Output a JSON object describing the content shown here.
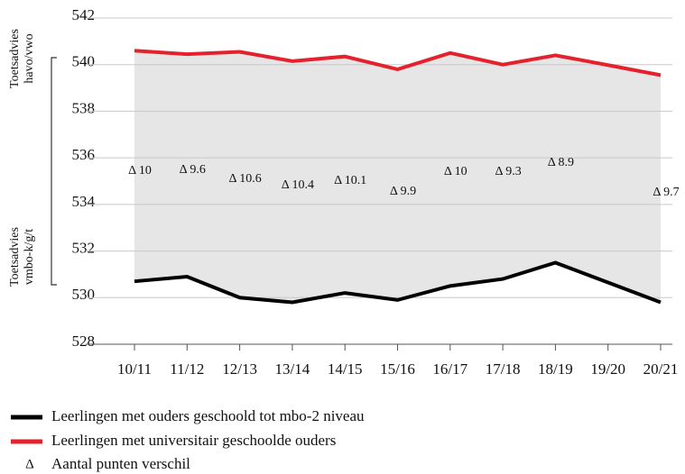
{
  "chart_data": {
    "type": "line",
    "categories": [
      "10/11",
      "11/12",
      "12/13",
      "13/14",
      "14/15",
      "15/16",
      "16/17",
      "17/18",
      "18/19",
      "19/20",
      "20/21"
    ],
    "series": [
      {
        "name": "Leerlingen met ouders geschoold tot mbo-2 niveau",
        "color": "#000000",
        "values": [
          530.7,
          530.9,
          530.0,
          529.8,
          530.2,
          529.9,
          530.5,
          530.8,
          531.5,
          530.65,
          529.8
        ]
      },
      {
        "name": "Leerlingen met universitair geschoolde ouders",
        "color": "#e4222d",
        "values": [
          540.6,
          540.45,
          540.55,
          540.15,
          540.35,
          539.8,
          540.5,
          540.0,
          540.4,
          539.98,
          539.55
        ]
      }
    ],
    "differences": {
      "values": [
        10,
        9.6,
        10.6,
        10.4,
        10.1,
        9.9,
        10,
        9.3,
        8.9,
        null,
        9.7
      ],
      "value_labels": [
        "Δ 10",
        "Δ 9.6",
        "Δ 10.6",
        "Δ 10.4",
        "Δ 10.1",
        "Δ 9.9",
        "Δ 10",
        "Δ 9.3",
        "Δ 8.9",
        null,
        "Δ 9.7"
      ]
    },
    "side_labels": [
      [
        "Toetsadvies",
        "havo/vwo"
      ],
      [
        "Toetsadvies",
        "vmbo-k/g/t"
      ]
    ],
    "delta_legend": {
      "symbol": "Δ",
      "text": "Aantal punten verschil"
    },
    "ylim": [
      528,
      542
    ],
    "yticks": [
      528,
      530,
      532,
      534,
      536,
      538,
      540,
      542
    ],
    "grid": true,
    "area_fill": "#e6e6e6"
  }
}
